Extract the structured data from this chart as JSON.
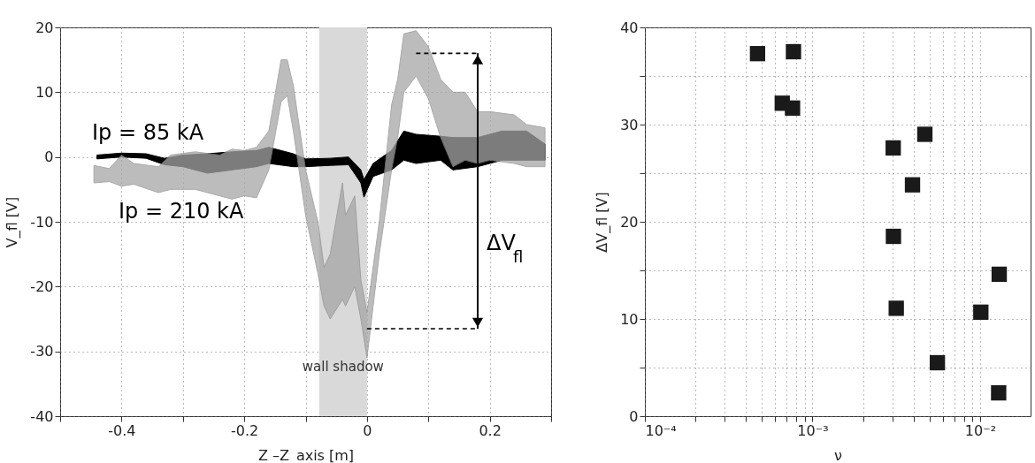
{
  "chart_data": [
    {
      "type": "area",
      "xlabel": "Z –Z_axis  [m]",
      "ylabel": "V_fl  [V]",
      "xlim": [
        -0.5,
        0.3
      ],
      "ylim": [
        -40,
        20
      ],
      "xticks": [
        {
          "value": -0.5,
          "label": null
        },
        -0.4,
        {
          "value": -0.3,
          "label": null
        },
        -0.2,
        {
          "value": -0.1,
          "label": null
        },
        0,
        {
          "value": 0.1,
          "label": null
        },
        0.2,
        {
          "value": 0.3,
          "label": null
        }
      ],
      "yticks": [
        -40,
        -30,
        -20,
        -10,
        0,
        10,
        20
      ],
      "grid": true,
      "series": [
        {
          "color": "#000000",
          "x": [
            -0.44,
            -0.4,
            -0.36,
            -0.33,
            -0.3,
            -0.26,
            -0.22,
            -0.18,
            -0.16,
            -0.12,
            -0.1,
            -0.06,
            -0.03,
            -0.01,
            -0.005,
            0.01,
            0.04,
            0.06,
            0.08,
            0.12,
            0.14,
            0.18,
            0.22,
            0.26,
            0.29
          ],
          "values": [
            null,
            null,
            null,
            null,
            null,
            null,
            null,
            null,
            null,
            null,
            null,
            null,
            null,
            null,
            null,
            null,
            null,
            null,
            null,
            null,
            null,
            null,
            null,
            null,
            null
          ],
          "lower": [
            -0.3,
            0,
            -0.2,
            -1.2,
            -1.5,
            -2.5,
            -2,
            -1.5,
            -1,
            -1.5,
            -1.5,
            -1.3,
            -1.2,
            -4,
            -6.2,
            -3,
            -2,
            -0.5,
            -1,
            -0.5,
            -2,
            -1.5,
            -0.5,
            -0.5,
            -0.5
          ],
          "upper": [
            0.3,
            0.6,
            0.5,
            -0.2,
            0.3,
            0.5,
            0.8,
            1,
            1.5,
            0.5,
            -0.3,
            -0.2,
            0,
            -2,
            -3.5,
            -1,
            1,
            4,
            3.5,
            3.2,
            3,
            3,
            4,
            4,
            2
          ]
        },
        {
          "color": "#a6a6a6",
          "x": [
            -0.445,
            -0.42,
            -0.4,
            -0.38,
            -0.34,
            -0.32,
            -0.28,
            -0.24,
            -0.22,
            -0.2,
            -0.18,
            -0.16,
            -0.14,
            -0.13,
            -0.12,
            -0.1,
            -0.08,
            -0.07,
            -0.06,
            -0.04,
            -0.035,
            -0.02,
            -0.01,
            0,
            0.02,
            0.04,
            0.05,
            0.06,
            0.08,
            0.1,
            0.12,
            0.14,
            0.16,
            0.18,
            0.2,
            0.24,
            0.26,
            0.29
          ],
          "values": [
            null,
            null,
            null,
            null,
            null,
            null,
            null,
            null,
            null,
            null,
            null,
            null,
            null,
            null,
            null,
            null,
            null,
            null,
            null,
            null,
            null,
            null,
            null,
            null,
            null,
            null,
            null,
            null,
            null,
            null,
            null,
            null,
            null,
            null,
            null,
            null,
            null,
            null
          ],
          "lower": [
            -4,
            -3.8,
            -4.5,
            -4.2,
            -5.5,
            -5,
            -5,
            -6,
            -6.5,
            -6,
            -6.3,
            -2,
            8.5,
            9.5,
            4,
            -9,
            -18,
            -23,
            -25,
            -22,
            -23,
            -20,
            -25,
            -31,
            -15,
            -2,
            3,
            10,
            12.5,
            9,
            3,
            -1.5,
            -0.5,
            -1,
            -0.5,
            -1,
            -1.5,
            -1.5
          ],
          "upper": [
            -1.3,
            -1.8,
            0.3,
            -1,
            -1.5,
            0.3,
            0.8,
            0.3,
            1.2,
            1,
            1.5,
            4,
            15,
            15,
            11,
            -2,
            -10,
            -17,
            -15,
            -4,
            -9,
            -6,
            -19,
            -24,
            -10,
            8,
            12,
            19,
            19.5,
            17,
            12,
            10,
            10,
            7,
            7,
            6.5,
            5,
            4.5
          ]
        }
      ],
      "bands": [
        {
          "axis": "x",
          "from": -0.078,
          "to": 0,
          "label": "wall shadow",
          "color": "#d9d9d9"
        }
      ],
      "ref_lines": [
        {
          "axis": "y",
          "value": 16,
          "line_style": "dashed",
          "color": "#000000"
        },
        {
          "axis": "y",
          "value": -26.5,
          "line_style": "dashed",
          "color": "#000000"
        }
      ],
      "annotations": [
        "Ip = 85 kA",
        "Ip = 210 kA",
        "ΔV$_{fl}$"
      ]
    },
    {
      "type": "scatter",
      "xlabel": "ν",
      "ylabel": "ΔV_fl  [V]",
      "log": "x",
      "marker": "square",
      "grid": true,
      "xlim": [
        0.0001,
        0.02
      ],
      "ylim": [
        0,
        40
      ],
      "xticks": [
        {
          "value": 0.0001,
          "label": "10⁻⁴"
        },
        {
          "value": 0.0002,
          "label": null
        },
        {
          "value": 0.0003,
          "label": null
        },
        {
          "value": 0.0004,
          "label": null
        },
        {
          "value": 0.0005,
          "label": null
        },
        {
          "value": 0.0006,
          "label": null
        },
        {
          "value": 0.0007,
          "label": null
        },
        {
          "value": 0.0008,
          "label": null
        },
        {
          "value": 0.0009,
          "label": null
        },
        {
          "value": 0.001,
          "label": "10⁻³"
        },
        {
          "value": 0.002,
          "label": null
        },
        {
          "value": 0.003,
          "label": null
        },
        {
          "value": 0.004,
          "label": null
        },
        {
          "value": 0.005,
          "label": null
        },
        {
          "value": 0.006,
          "label": null
        },
        {
          "value": 0.007,
          "label": null
        },
        {
          "value": 0.008,
          "label": null
        },
        {
          "value": 0.009,
          "label": null
        },
        {
          "value": 0.01,
          "label": "10⁻²"
        }
      ],
      "yticks": [
        0,
        {
          "value": 5,
          "label": null
        },
        10,
        {
          "value": 15,
          "label": null
        },
        20,
        {
          "value": 25,
          "label": null
        },
        30,
        {
          "value": 35,
          "label": null
        },
        40
      ],
      "series": [
        {
          "color": "#1a1a1a",
          "x": [
            0.00047,
            0.00077,
            0.00066,
            0.00076,
            0.00303,
            0.00468,
            0.00395,
            0.00304,
            0.013,
            0.00316,
            0.0101,
            0.00556,
            0.0129
          ],
          "values": [
            37.3,
            37.5,
            32.2,
            31.7,
            27.6,
            29.0,
            23.8,
            18.5,
            14.6,
            11.1,
            10.7,
            5.5,
            2.4
          ]
        }
      ]
    }
  ]
}
